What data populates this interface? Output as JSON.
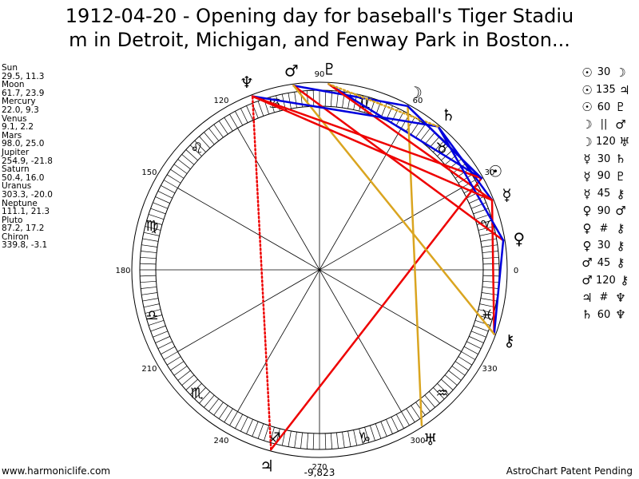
{
  "title_line1": "1912-04-20 - Opening day for baseball's Tiger Stadiu",
  "title_line2": "m in Detroit, Michigan, and Fenway Park in Boston...",
  "planets": [
    {
      "name": "Sun",
      "coords": "29.5, 11.3"
    },
    {
      "name": "Moon",
      "coords": "61.7, 23.9"
    },
    {
      "name": "Mercury",
      "coords": "22.0, 9.3"
    },
    {
      "name": "Venus",
      "coords": "9.1, 2.2"
    },
    {
      "name": "Mars",
      "coords": "98.0, 25.0"
    },
    {
      "name": "Jupiter",
      "coords": "254.9, -21.8"
    },
    {
      "name": "Saturn",
      "coords": "50.4, 16.0"
    },
    {
      "name": "Uranus",
      "coords": "303.3, -20.0"
    },
    {
      "name": "Neptune",
      "coords": "111.1, 21.3"
    },
    {
      "name": "Pluto",
      "coords": "87.2, 17.2"
    },
    {
      "name": "Chiron",
      "coords": "339.8, -3.1"
    }
  ],
  "aspects": [
    {
      "p1": "☉",
      "asp": "30",
      "p2": "☽"
    },
    {
      "p1": "☉",
      "asp": "135",
      "p2": "♃"
    },
    {
      "p1": "☉",
      "asp": "60",
      "p2": "♇"
    },
    {
      "p1": "☽",
      "asp": "||",
      "p2": "♂"
    },
    {
      "p1": "☽",
      "asp": "120",
      "p2": "♅"
    },
    {
      "p1": "☿",
      "asp": "30",
      "p2": "♄"
    },
    {
      "p1": "☿",
      "asp": "90",
      "p2": "♇"
    },
    {
      "p1": "☿",
      "asp": "45",
      "p2": "⚷"
    },
    {
      "p1": "♀",
      "asp": "90",
      "p2": "♂"
    },
    {
      "p1": "♀",
      "asp": "#",
      "p2": "⚷"
    },
    {
      "p1": "♀",
      "asp": "30",
      "p2": "⚷"
    },
    {
      "p1": "♂",
      "asp": "45",
      "p2": "⚷"
    },
    {
      "p1": "♂",
      "asp": "120",
      "p2": "⚷"
    },
    {
      "p1": "♃",
      "asp": "#",
      "p2": "♆"
    },
    {
      "p1": "♄",
      "asp": "60",
      "p2": "♆"
    }
  ],
  "chart_data": {
    "type": "astrology-wheel",
    "degree_labels": [
      {
        "deg": 0,
        "label": "0"
      },
      {
        "deg": 30,
        "label": "30"
      },
      {
        "deg": 60,
        "label": "60"
      },
      {
        "deg": 90,
        "label": "90"
      },
      {
        "deg": 120,
        "label": "120"
      },
      {
        "deg": 150,
        "label": "150"
      },
      {
        "deg": 180,
        "label": "180"
      },
      {
        "deg": 210,
        "label": "210"
      },
      {
        "deg": 240,
        "label": "240"
      },
      {
        "deg": 270,
        "label": "270"
      },
      {
        "deg": 300,
        "label": "300"
      },
      {
        "deg": 330,
        "label": "330"
      }
    ],
    "signs": [
      {
        "name": "aries",
        "glyph": "♈",
        "deg": 15
      },
      {
        "name": "taurus",
        "glyph": "♉",
        "deg": 45
      },
      {
        "name": "gemini",
        "glyph": "♊",
        "deg": 75
      },
      {
        "name": "cancer",
        "glyph": "♋",
        "deg": 105
      },
      {
        "name": "leo",
        "glyph": "♌",
        "deg": 135
      },
      {
        "name": "virgo",
        "glyph": "♍",
        "deg": 165
      },
      {
        "name": "libra",
        "glyph": "♎",
        "deg": 195
      },
      {
        "name": "scorpio",
        "glyph": "♏",
        "deg": 225
      },
      {
        "name": "sagittarius",
        "glyph": "♐",
        "deg": 255
      },
      {
        "name": "capricorn",
        "glyph": "♑",
        "deg": 285
      },
      {
        "name": "aquarius",
        "glyph": "♒",
        "deg": 315
      },
      {
        "name": "pisces",
        "glyph": "♓",
        "deg": 345
      }
    ],
    "bodies": [
      {
        "name": "sun",
        "glyph": "☉",
        "deg": 29.5
      },
      {
        "name": "moon",
        "glyph": "☽",
        "deg": 61.7
      },
      {
        "name": "mercury",
        "glyph": "☿",
        "deg": 22.0
      },
      {
        "name": "venus",
        "glyph": "♀",
        "deg": 9.1
      },
      {
        "name": "mars",
        "glyph": "♂",
        "deg": 98.0
      },
      {
        "name": "jupiter",
        "glyph": "♃",
        "deg": 254.9
      },
      {
        "name": "saturn",
        "glyph": "♄",
        "deg": 50.4
      },
      {
        "name": "uranus",
        "glyph": "♅",
        "deg": 303.3
      },
      {
        "name": "neptune",
        "glyph": "♆",
        "deg": 111.1
      },
      {
        "name": "pluto",
        "glyph": "♇",
        "deg": 87.2
      },
      {
        "name": "chiron",
        "glyph": "⚷",
        "deg": 339.8
      }
    ],
    "aspect_lines": [
      {
        "from": "sun",
        "to": "moon",
        "color": "#0000dd",
        "style": "solid"
      },
      {
        "from": "sun",
        "to": "jupiter",
        "color": "#ee0000",
        "style": "solid"
      },
      {
        "from": "sun",
        "to": "pluto",
        "color": "#0000dd",
        "style": "solid"
      },
      {
        "from": "moon",
        "to": "mars",
        "color": "#0000dd",
        "style": "solid"
      },
      {
        "from": "moon",
        "to": "uranus",
        "color": "#daa520",
        "style": "solid"
      },
      {
        "from": "mercury",
        "to": "saturn",
        "color": "#0000dd",
        "style": "solid"
      },
      {
        "from": "mercury",
        "to": "pluto",
        "color": "#ee0000",
        "style": "solid"
      },
      {
        "from": "mercury",
        "to": "chiron",
        "color": "#ee0000",
        "style": "solid"
      },
      {
        "from": "venus",
        "to": "mars",
        "color": "#ee0000",
        "style": "solid"
      },
      {
        "from": "venus",
        "to": "chiron",
        "color": "#0000dd",
        "style": "solid"
      },
      {
        "from": "mars",
        "to": "chiron",
        "color": "#daa520",
        "style": "solid"
      },
      {
        "from": "jupiter",
        "to": "neptune",
        "color": "#ee0000",
        "style": "dotted"
      },
      {
        "from": "saturn",
        "to": "neptune",
        "color": "#0000dd",
        "style": "solid"
      },
      {
        "from": "sun",
        "to": "neptune",
        "color": "#ee0000",
        "style": "solid"
      },
      {
        "from": "saturn",
        "to": "venus",
        "color": "#0000dd",
        "style": "solid"
      },
      {
        "from": "mercury",
        "to": "neptune",
        "color": "#ee0000",
        "style": "solid"
      },
      {
        "from": "pluto",
        "to": "saturn",
        "color": "#daa520",
        "style": "dotted"
      },
      {
        "from": "moon",
        "to": "sun",
        "color": "#0000dd",
        "style": "solid"
      }
    ],
    "bottom_value": "-9,823"
  },
  "footer_left": "www.harmoniclife.com",
  "footer_right": "AstroChart Patent Pending"
}
